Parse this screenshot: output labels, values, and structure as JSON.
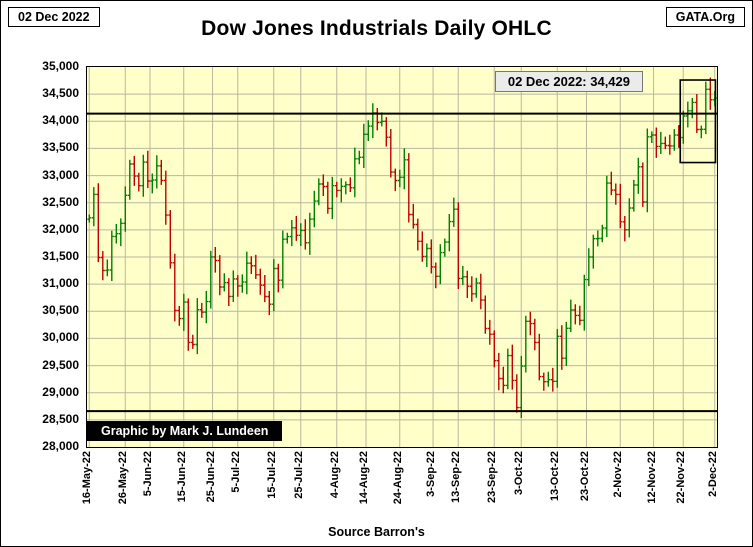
{
  "header": {
    "date_box": "02 Dec 2022",
    "brand_box": "GATA.Org",
    "title": "Dow Jones Industrials Daily OHLC"
  },
  "footer": {
    "source": "Source Barron's"
  },
  "chart_data": {
    "type": "ohlc",
    "title": "Dow Jones Industrials Daily OHLC",
    "annotation": "02 Dec 2022: 34,429",
    "watermark": "Graphic by Mark J. Lundeen",
    "source": "Source Barron's",
    "ylim": [
      28000,
      35000
    ],
    "y_tick_step": 500,
    "grid": true,
    "background": "#FFFFC9",
    "grid_color": "#b8b89f",
    "up_color": "#007F00",
    "down_color": "#C00000",
    "hlines": [
      34140,
      28660
    ],
    "highlight_box": {
      "start_index": 132,
      "end_index": 139,
      "price_top": 34760,
      "price_bottom": 33240
    },
    "x_ticks": [
      {
        "label": "16-May-22",
        "i": 0
      },
      {
        "label": "26-May-22",
        "i": 8
      },
      {
        "label": "5-Jun-22",
        "i": 13.5
      },
      {
        "label": "15-Jun-22",
        "i": 21
      },
      {
        "label": "25-Jun-22",
        "i": 27.4
      },
      {
        "label": "5-Jul-22",
        "i": 33
      },
      {
        "label": "15-Jul-22",
        "i": 41
      },
      {
        "label": "25-Jul-22",
        "i": 47
      },
      {
        "label": "4-Aug-22",
        "i": 55
      },
      {
        "label": "14-Aug-22",
        "i": 61.5
      },
      {
        "label": "24-Aug-22",
        "i": 69
      },
      {
        "label": "3-Sep-22",
        "i": 76.4
      },
      {
        "label": "13-Sep-22",
        "i": 82
      },
      {
        "label": "23-Sep-22",
        "i": 90
      },
      {
        "label": "3-Oct-22",
        "i": 96
      },
      {
        "label": "13-Oct-22",
        "i": 104
      },
      {
        "label": "23-Oct-22",
        "i": 110.5
      },
      {
        "label": "2-Nov-22",
        "i": 118
      },
      {
        "label": "12-Nov-22",
        "i": 125.4
      },
      {
        "label": "22-Nov-22",
        "i": 132
      },
      {
        "label": "2-Dec-22",
        "i": 139
      }
    ],
    "first_open": 32196,
    "dates": [
      "16-May",
      "17-May",
      "18-May",
      "19-May",
      "20-May",
      "23-May",
      "24-May",
      "25-May",
      "26-May",
      "27-May",
      "31-May",
      "1-Jun",
      "2-Jun",
      "3-Jun",
      "6-Jun",
      "7-Jun",
      "8-Jun",
      "9-Jun",
      "10-Jun",
      "13-Jun",
      "14-Jun",
      "15-Jun",
      "16-Jun",
      "17-Jun",
      "21-Jun",
      "22-Jun",
      "23-Jun",
      "24-Jun",
      "27-Jun",
      "28-Jun",
      "29-Jun",
      "30-Jun",
      "1-Jul",
      "5-Jul",
      "6-Jul",
      "7-Jul",
      "8-Jul",
      "11-Jul",
      "12-Jul",
      "13-Jul",
      "14-Jul",
      "15-Jul",
      "18-Jul",
      "19-Jul",
      "20-Jul",
      "21-Jul",
      "22-Jul",
      "25-Jul",
      "26-Jul",
      "27-Jul",
      "28-Jul",
      "29-Jul",
      "1-Aug",
      "2-Aug",
      "3-Aug",
      "4-Aug",
      "5-Aug",
      "8-Aug",
      "9-Aug",
      "10-Aug",
      "11-Aug",
      "12-Aug",
      "15-Aug",
      "16-Aug",
      "17-Aug",
      "18-Aug",
      "19-Aug",
      "22-Aug",
      "23-Aug",
      "24-Aug",
      "25-Aug",
      "26-Aug",
      "29-Aug",
      "30-Aug",
      "31-Aug",
      "1-Sep",
      "2-Sep",
      "6-Sep",
      "7-Sep",
      "8-Sep",
      "9-Sep",
      "12-Sep",
      "13-Sep",
      "14-Sep",
      "15-Sep",
      "16-Sep",
      "19-Sep",
      "20-Sep",
      "21-Sep",
      "22-Sep",
      "23-Sep",
      "26-Sep",
      "27-Sep",
      "28-Sep",
      "29-Sep",
      "30-Sep",
      "3-Oct",
      "4-Oct",
      "5-Oct",
      "6-Oct",
      "7-Oct",
      "10-Oct",
      "11-Oct",
      "12-Oct",
      "13-Oct",
      "14-Oct",
      "17-Oct",
      "18-Oct",
      "19-Oct",
      "20-Oct",
      "21-Oct",
      "24-Oct",
      "25-Oct",
      "26-Oct",
      "27-Oct",
      "28-Oct",
      "31-Oct",
      "1-Nov",
      "2-Nov",
      "3-Nov",
      "4-Nov",
      "7-Nov",
      "8-Nov",
      "9-Nov",
      "10-Nov",
      "11-Nov",
      "14-Nov",
      "15-Nov",
      "16-Nov",
      "17-Nov",
      "18-Nov",
      "21-Nov",
      "22-Nov",
      "23-Nov",
      "25-Nov",
      "28-Nov",
      "29-Nov",
      "30-Nov",
      "1-Dec",
      "2-Dec"
    ],
    "closes": [
      32223,
      32654,
      31490,
      31253,
      31262,
      31880,
      31929,
      32120,
      32637,
      33213,
      32990,
      32813,
      33248,
      32900,
      32916,
      33180,
      32911,
      32272,
      31393,
      30517,
      30365,
      30669,
      29927,
      29889,
      30530,
      30483,
      30678,
      31501,
      31438,
      30947,
      31029,
      30775,
      31097,
      30968,
      31038,
      31385,
      31338,
      31173,
      30981,
      30773,
      30630,
      31288,
      31072,
      31827,
      31875,
      32037,
      31899,
      31990,
      31762,
      32198,
      32530,
      32845,
      32798,
      32396,
      32813,
      32727,
      32803,
      32832,
      32774,
      33309,
      33337,
      33761,
      33912,
      34152,
      33980,
      33999,
      33707,
      33064,
      32910,
      32969,
      33291,
      32283,
      32098,
      31790,
      31510,
      31656,
      31318,
      31145,
      31581,
      31774,
      32152,
      32381,
      31105,
      31135,
      30962,
      30822,
      31020,
      30706,
      30184,
      30077,
      29590,
      29261,
      29135,
      29684,
      29226,
      28726,
      29491,
      30316,
      30274,
      29927,
      29297,
      29203,
      29239,
      29211,
      30039,
      29635,
      30186,
      30524,
      30424,
      30334,
      31083,
      31500,
      31837,
      31840,
      32033,
      32862,
      32733,
      32653,
      32148,
      32001,
      32403,
      32827,
      33161,
      32514,
      33715,
      33748,
      33537,
      33593,
      33554,
      33546,
      33746,
      33700,
      34098,
      34194,
      34347,
      33849,
      33853,
      34590,
      34395,
      34429
    ]
  }
}
